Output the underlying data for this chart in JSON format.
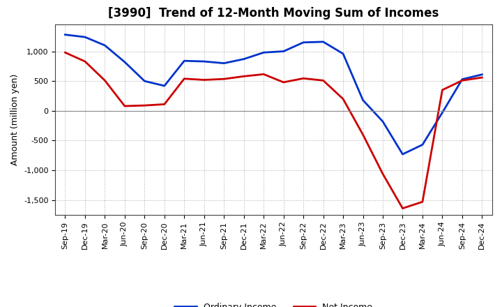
{
  "title": "[3990]  Trend of 12-Month Moving Sum of Incomes",
  "ylabel": "Amount (million yen)",
  "background_color": "#ffffff",
  "x_labels": [
    "Sep-19",
    "Dec-19",
    "Mar-20",
    "Jun-20",
    "Sep-20",
    "Dec-20",
    "Mar-21",
    "Jun-21",
    "Sep-21",
    "Dec-21",
    "Mar-22",
    "Jun-22",
    "Sep-22",
    "Dec-22",
    "Mar-23",
    "Jun-23",
    "Sep-23",
    "Dec-23",
    "Mar-24",
    "Jun-24",
    "Sep-24",
    "Dec-24"
  ],
  "ordinary_income": [
    1280,
    1240,
    1100,
    820,
    500,
    420,
    840,
    830,
    800,
    870,
    980,
    1000,
    1150,
    1160,
    960,
    180,
    -180,
    -730,
    -570,
    -30,
    530,
    610
  ],
  "net_income": [
    980,
    830,
    510,
    80,
    90,
    110,
    540,
    520,
    535,
    580,
    615,
    480,
    545,
    510,
    200,
    -400,
    -1060,
    -1640,
    -1530,
    350,
    510,
    560
  ],
  "ordinary_income_color": "#0033cc",
  "net_income_color": "#cc0000",
  "ylim_min": -1750,
  "ylim_max": 1450,
  "yticks": [
    -1500,
    -1000,
    -500,
    0,
    500,
    1000
  ],
  "line_width": 2.0,
  "legend_ordinary": "Ordinary Income",
  "legend_net": "Net Income",
  "title_fontsize": 12,
  "ylabel_fontsize": 9,
  "tick_fontsize": 8,
  "legend_fontsize": 9
}
